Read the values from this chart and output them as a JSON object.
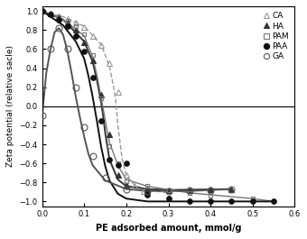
{
  "xlabel": "PE adsorbed amount, mmol/g",
  "ylabel": "Zeta potential (relative sacle)",
  "xlim": [
    0,
    0.6
  ],
  "ylim": [
    -1.05,
    1.05
  ],
  "xticks": [
    0.0,
    0.1,
    0.2,
    0.3,
    0.4,
    0.5,
    0.6
  ],
  "yticks": [
    -1.0,
    -0.8,
    -0.6,
    -0.4,
    -0.2,
    0.0,
    0.2,
    0.4,
    0.6,
    0.8,
    1.0
  ],
  "series": {
    "CA": {
      "pts_x": [
        0.0,
        0.02,
        0.04,
        0.06,
        0.08,
        0.1,
        0.12,
        0.14,
        0.16,
        0.18,
        0.2,
        0.22,
        0.24
      ],
      "pts_y": [
        1.0,
        0.97,
        0.95,
        0.92,
        0.88,
        0.83,
        0.74,
        0.64,
        0.45,
        0.15,
        -0.72,
        -0.84,
        -0.89
      ],
      "marker": "^",
      "fillstyle": "none",
      "color": "#999999",
      "linestyle": "--",
      "linewidth": 1.0,
      "markersize": 4,
      "curve_x": [
        0.0,
        0.05,
        0.1,
        0.14,
        0.16,
        0.17,
        0.175,
        0.18,
        0.19,
        0.2,
        0.22,
        0.25,
        0.3
      ],
      "curve_y": [
        1.0,
        0.94,
        0.84,
        0.65,
        0.42,
        0.2,
        0.05,
        -0.2,
        -0.55,
        -0.73,
        -0.83,
        -0.88,
        -0.91
      ]
    },
    "HA": {
      "pts_x": [
        0.0,
        0.02,
        0.04,
        0.06,
        0.08,
        0.1,
        0.12,
        0.14,
        0.16,
        0.18,
        0.2,
        0.25,
        0.3,
        0.35,
        0.4,
        0.45
      ],
      "pts_y": [
        1.0,
        0.97,
        0.94,
        0.88,
        0.8,
        0.67,
        0.48,
        0.12,
        -0.3,
        -0.72,
        -0.83,
        -0.87,
        -0.88,
        -0.88,
        -0.87,
        -0.87
      ],
      "marker": "^",
      "fillstyle": "full",
      "color": "#333333",
      "linestyle": "-",
      "linewidth": 1.4,
      "markersize": 4,
      "curve_x": [
        0.0,
        0.05,
        0.1,
        0.12,
        0.13,
        0.14,
        0.145,
        0.15,
        0.16,
        0.18,
        0.2,
        0.25,
        0.3,
        0.45
      ],
      "curve_y": [
        1.0,
        0.91,
        0.68,
        0.47,
        0.28,
        0.05,
        -0.1,
        -0.28,
        -0.56,
        -0.77,
        -0.84,
        -0.87,
        -0.88,
        -0.87
      ]
    },
    "PAM": {
      "pts_x": [
        0.0,
        0.02,
        0.04,
        0.06,
        0.08,
        0.1,
        0.12,
        0.14,
        0.16,
        0.18,
        0.2,
        0.25,
        0.3,
        0.35,
        0.4,
        0.5,
        0.55
      ],
      "pts_y": [
        1.0,
        0.97,
        0.94,
        0.9,
        0.84,
        0.76,
        0.54,
        0.08,
        -0.42,
        -0.6,
        -0.79,
        -0.84,
        -0.88,
        -0.91,
        -0.94,
        -0.97,
        -1.0
      ],
      "marker": "s",
      "fillstyle": "none",
      "color": "#777777",
      "linestyle": "-",
      "linewidth": 1.0,
      "markersize": 3.5,
      "curve_x": [
        0.0,
        0.05,
        0.1,
        0.12,
        0.13,
        0.14,
        0.15,
        0.16,
        0.18,
        0.2,
        0.25,
        0.35,
        0.5,
        0.55
      ],
      "curve_y": [
        1.0,
        0.91,
        0.74,
        0.52,
        0.33,
        0.1,
        -0.15,
        -0.38,
        -0.62,
        -0.77,
        -0.84,
        -0.91,
        -0.97,
        -1.0
      ]
    },
    "PAA": {
      "pts_x": [
        0.0,
        0.02,
        0.04,
        0.06,
        0.08,
        0.1,
        0.12,
        0.14,
        0.16,
        0.18,
        0.2,
        0.25,
        0.3,
        0.35,
        0.4,
        0.45,
        0.5,
        0.55
      ],
      "pts_y": [
        1.0,
        0.96,
        0.91,
        0.84,
        0.74,
        0.58,
        0.3,
        -0.15,
        -0.56,
        -0.62,
        -0.6,
        -0.93,
        -0.97,
        -1.0,
        -1.0,
        -1.0,
        -1.0,
        -1.0
      ],
      "marker": "o",
      "fillstyle": "full",
      "color": "#111111",
      "linestyle": "-",
      "linewidth": 1.4,
      "markersize": 4,
      "curve_x": [
        0.0,
        0.05,
        0.08,
        0.1,
        0.11,
        0.12,
        0.13,
        0.14,
        0.15,
        0.16,
        0.18,
        0.2,
        0.25,
        0.55
      ],
      "curve_y": [
        1.0,
        0.85,
        0.68,
        0.5,
        0.32,
        0.1,
        -0.15,
        -0.42,
        -0.63,
        -0.78,
        -0.92,
        -0.97,
        -1.0,
        -1.0
      ]
    },
    "GA": {
      "pts_x": [
        0.0,
        0.02,
        0.04,
        0.06,
        0.08,
        0.1,
        0.12,
        0.15,
        0.2,
        0.25,
        0.3,
        0.35,
        0.4,
        0.45
      ],
      "pts_y": [
        -0.1,
        0.6,
        0.82,
        0.6,
        0.2,
        -0.22,
        -0.52,
        -0.75,
        -0.87,
        -0.89,
        -0.89,
        -0.88,
        -0.88,
        -0.87
      ],
      "marker": "o",
      "fillstyle": "none",
      "color": "#555555",
      "linestyle": "-",
      "linewidth": 1.4,
      "markersize": 5,
      "curve_x": [
        0.0,
        0.01,
        0.02,
        0.03,
        0.04,
        0.05,
        0.06,
        0.07,
        0.08,
        0.09,
        0.1,
        0.11,
        0.12,
        0.15,
        0.2,
        0.25,
        0.35,
        0.45
      ],
      "curve_y": [
        -0.1,
        0.35,
        0.6,
        0.78,
        0.82,
        0.75,
        0.58,
        0.35,
        0.1,
        -0.12,
        -0.32,
        -0.5,
        -0.62,
        -0.78,
        -0.87,
        -0.89,
        -0.89,
        -0.87
      ]
    }
  },
  "legend_order": [
    "CA",
    "HA",
    "PAM",
    "PAA",
    "GA"
  ]
}
